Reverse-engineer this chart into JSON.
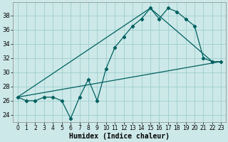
{
  "xlabel": "Humidex (Indice chaleur)",
  "x_ticks": [
    0,
    1,
    2,
    3,
    4,
    5,
    6,
    7,
    8,
    9,
    10,
    11,
    12,
    13,
    14,
    15,
    16,
    17,
    18,
    19,
    20,
    21,
    22,
    23
  ],
  "xlim": [
    -0.5,
    23.5
  ],
  "ylim": [
    23.0,
    39.8
  ],
  "y_ticks": [
    24,
    26,
    28,
    30,
    32,
    34,
    36,
    38
  ],
  "bg_color": "#cde8e8",
  "grid_color": "#9ecece",
  "line_color": "#006060",
  "line1_x": [
    0,
    1,
    2,
    3,
    4,
    5,
    6,
    7,
    8,
    9,
    10,
    11,
    12,
    13,
    14,
    15,
    16,
    17,
    18,
    19,
    20,
    21,
    22,
    23
  ],
  "line1_y": [
    26.5,
    26.0,
    26.0,
    26.5,
    26.5,
    26.0,
    23.5,
    26.5,
    29.0,
    26.0,
    30.5,
    33.5,
    35.0,
    36.5,
    37.5,
    39.0,
    37.5,
    39.0,
    38.5,
    37.5,
    36.5,
    32.0,
    31.5,
    31.5
  ],
  "line2_x": [
    0,
    23
  ],
  "line2_y": [
    26.5,
    31.5
  ],
  "line3_x": [
    0,
    15,
    22
  ],
  "line3_y": [
    26.5,
    39.0,
    31.5
  ],
  "fontsize_label": 7,
  "fontsize_tick": 6
}
